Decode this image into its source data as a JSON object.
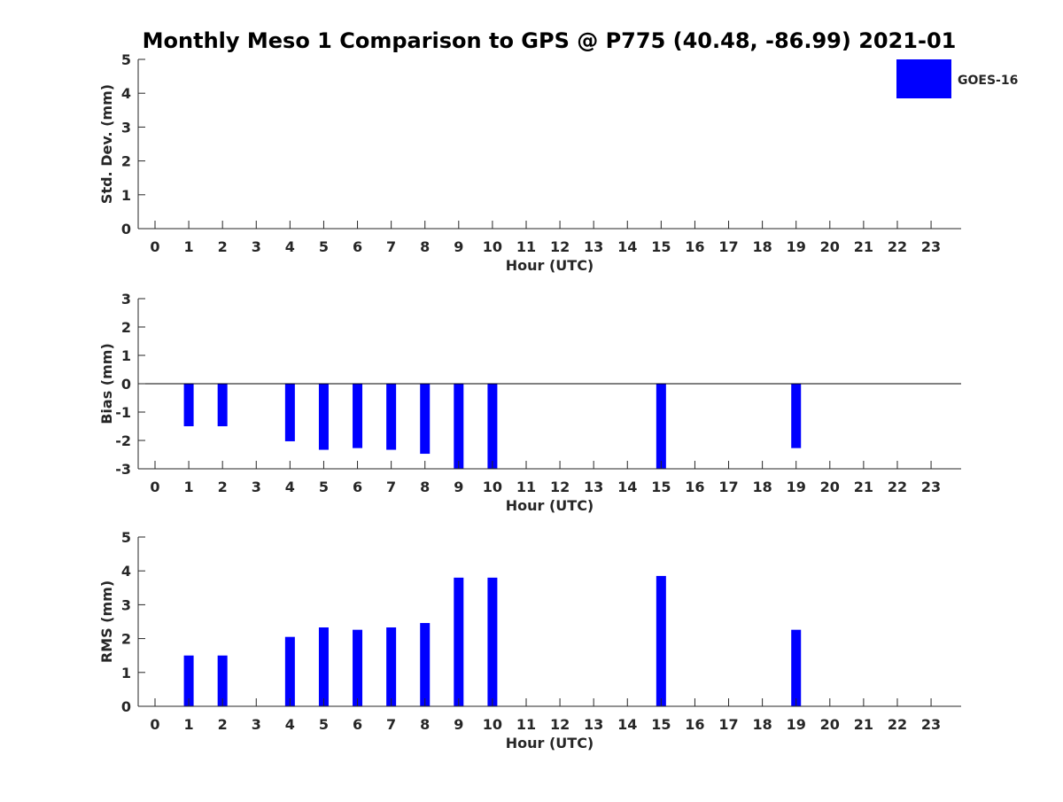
{
  "title": "Monthly Meso 1 Comparison to GPS @ P775 (40.48, -86.99) 2021-01",
  "legend": {
    "label": "GOES-16",
    "color": "#0000ff",
    "placement": "top-right"
  },
  "chart_data": [
    {
      "type": "bar",
      "ylabel": "Std. Dev. (mm)",
      "xlabel": "Hour (UTC)",
      "ylim": [
        0,
        5
      ],
      "yticks": [
        0,
        1,
        2,
        3,
        4,
        5
      ],
      "categories": [
        "0",
        "1",
        "2",
        "3",
        "4",
        "5",
        "6",
        "7",
        "8",
        "9",
        "10",
        "11",
        "12",
        "13",
        "14",
        "15",
        "16",
        "17",
        "18",
        "19",
        "20",
        "21",
        "22",
        "23"
      ],
      "series": [
        {
          "name": "GOES-16",
          "color": "#0000ff",
          "values": [
            null,
            null,
            null,
            null,
            null,
            null,
            null,
            null,
            null,
            null,
            null,
            null,
            null,
            null,
            null,
            null,
            null,
            null,
            null,
            null,
            null,
            null,
            null,
            null
          ]
        }
      ],
      "zero_line": false
    },
    {
      "type": "bar",
      "ylabel": "Bias (mm)",
      "xlabel": "Hour (UTC)",
      "ylim": [
        -3,
        3
      ],
      "yticks": [
        -3,
        -2,
        -1,
        0,
        1,
        2,
        3
      ],
      "categories": [
        "0",
        "1",
        "2",
        "3",
        "4",
        "5",
        "6",
        "7",
        "8",
        "9",
        "10",
        "11",
        "12",
        "13",
        "14",
        "15",
        "16",
        "17",
        "18",
        "19",
        "20",
        "21",
        "22",
        "23"
      ],
      "series": [
        {
          "name": "GOES-16",
          "color": "#0000ff",
          "values": [
            null,
            -1.5,
            -1.5,
            null,
            -2.03,
            -2.33,
            -2.27,
            -2.33,
            -2.47,
            -3.0,
            -3.0,
            null,
            null,
            null,
            null,
            -3.0,
            null,
            null,
            null,
            -2.27,
            null,
            null,
            null,
            null
          ]
        }
      ],
      "zero_line": true
    },
    {
      "type": "bar",
      "ylabel": "RMS (mm)",
      "xlabel": "Hour (UTC)",
      "ylim": [
        0,
        5
      ],
      "yticks": [
        0,
        1,
        2,
        3,
        4,
        5
      ],
      "categories": [
        "0",
        "1",
        "2",
        "3",
        "4",
        "5",
        "6",
        "7",
        "8",
        "9",
        "10",
        "11",
        "12",
        "13",
        "14",
        "15",
        "16",
        "17",
        "18",
        "19",
        "20",
        "21",
        "22",
        "23"
      ],
      "series": [
        {
          "name": "GOES-16",
          "color": "#0000ff",
          "values": [
            null,
            1.5,
            1.5,
            null,
            2.05,
            2.33,
            2.26,
            2.33,
            2.46,
            3.8,
            3.8,
            null,
            null,
            null,
            null,
            3.85,
            null,
            null,
            null,
            2.26,
            null,
            null,
            null,
            null
          ]
        }
      ],
      "zero_line": false
    }
  ]
}
